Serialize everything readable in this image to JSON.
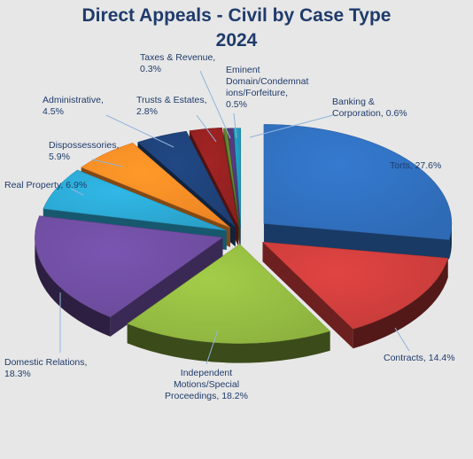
{
  "chart_data": {
    "type": "pie",
    "title_line1": "Direct Appeals - Civil by Case Type",
    "title_line2": "2024",
    "slices": [
      {
        "label": "Torts",
        "value": 27.6,
        "display": "27.6%",
        "color": "#2e6ab5"
      },
      {
        "label": "Contracts",
        "value": 14.4,
        "display": "14.4%",
        "color": "#c43b39"
      },
      {
        "label": "Independent Motions/Special Proceedings",
        "value": 18.2,
        "display": "18.2%",
        "color": "#8db23f"
      },
      {
        "label": "Domestic Relations",
        "value": 18.3,
        "display": "18.3%",
        "color": "#6a4a9a"
      },
      {
        "label": "Real Property",
        "value": 6.9,
        "display": "6.9%",
        "color": "#2aa0c9"
      },
      {
        "label": "Dispossessories",
        "value": 5.9,
        "display": "5.9%",
        "color": "#ee8524"
      },
      {
        "label": "Administrative",
        "value": 4.5,
        "display": "4.5%",
        "color": "#1d3f73"
      },
      {
        "label": "Trusts & Estates",
        "value": 2.8,
        "display": "2.8%",
        "color": "#8e1f1f"
      },
      {
        "label": "Taxes & Revenue",
        "value": 0.3,
        "display": "0.3%",
        "color": "#5c7b2b"
      },
      {
        "label": "Eminent Domain/Condemnations/Forfeiture",
        "value": 0.5,
        "display": "0.5%",
        "color": "#4d3473"
      },
      {
        "label": "Banking & Corporation",
        "value": 0.6,
        "display": "0.6%",
        "color": "#1e8fb0"
      }
    ],
    "label_text": [
      {
        "lines": [
          "Torts, 27.6%"
        ]
      },
      {
        "lines": [
          "Contracts, 14.4%"
        ]
      },
      {
        "lines": [
          "Independent",
          "Motions/Special",
          "Proceedings, 18.2%"
        ]
      },
      {
        "lines": [
          "Domestic Relations,",
          "18.3%"
        ]
      },
      {
        "lines": [
          "Real Property, 6.9%"
        ]
      },
      {
        "lines": [
          "Dispossessories,",
          "5.9%"
        ]
      },
      {
        "lines": [
          "Administrative,",
          "4.5%"
        ]
      },
      {
        "lines": [
          "Trusts & Estates,",
          "2.8%"
        ]
      },
      {
        "lines": [
          "Taxes & Revenue,",
          "0.3%"
        ]
      },
      {
        "lines": [
          "Eminent",
          "Domain/Condemnat",
          "ions/Forfeiture,",
          "0.5%"
        ]
      },
      {
        "lines": [
          "Banking &",
          "Corporation, 0.6%"
        ]
      }
    ],
    "legend": "none",
    "style": "3d-exploded"
  }
}
